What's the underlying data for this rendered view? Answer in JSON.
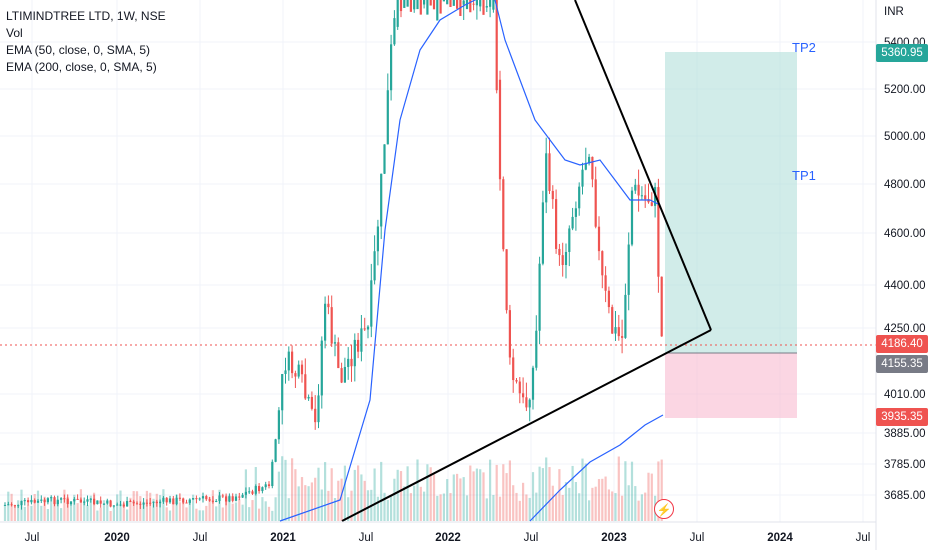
{
  "legend": {
    "title": "LTIMINDTREE LTD, 1W, NSE",
    "vol": "Vol",
    "ema50": "EMA (50, close, 0, SMA, 5)",
    "ema200": "EMA (200, close, 0, SMA, 5)"
  },
  "currency": "INR",
  "price_tags": {
    "tp2": "5360.95",
    "last": "4186.40",
    "entry": "4155.35",
    "stop": "3935.35"
  },
  "labels": {
    "tp1": "TP1",
    "tp2": "TP2"
  },
  "colors": {
    "up": "#26a69a",
    "down": "#ef5350",
    "ema": "#2962ff",
    "target": "#b2dfdb",
    "stop": "#f8bbd0",
    "line": "#000000"
  },
  "chart_data": {
    "type": "candlestick",
    "symbol": "LTIMINDTREE LTD",
    "interval": "1W",
    "exchange": "NSE",
    "y_ticks": [
      "5400.00",
      "5200.00",
      "5000.00",
      "4800.00",
      "4600.00",
      "4400.00",
      "4250.00",
      "4010.00",
      "3885.00",
      "3785.00",
      "3685.00"
    ],
    "x_ticks": [
      "Jul",
      "2020",
      "Jul",
      "2021",
      "Jul",
      "2022",
      "Jul",
      "2023",
      "Jul",
      "2024",
      "Jul"
    ],
    "ylim": [
      3635,
      5460
    ],
    "trade": {
      "target_tp2": 5360.95,
      "entry": 4155.35,
      "stop": 3935.35,
      "last_price": 4186.4
    },
    "ema_series": [
      "EMA (50, close, 0, SMA, 5)",
      "EMA (200, close, 0, SMA, 5)"
    ]
  }
}
